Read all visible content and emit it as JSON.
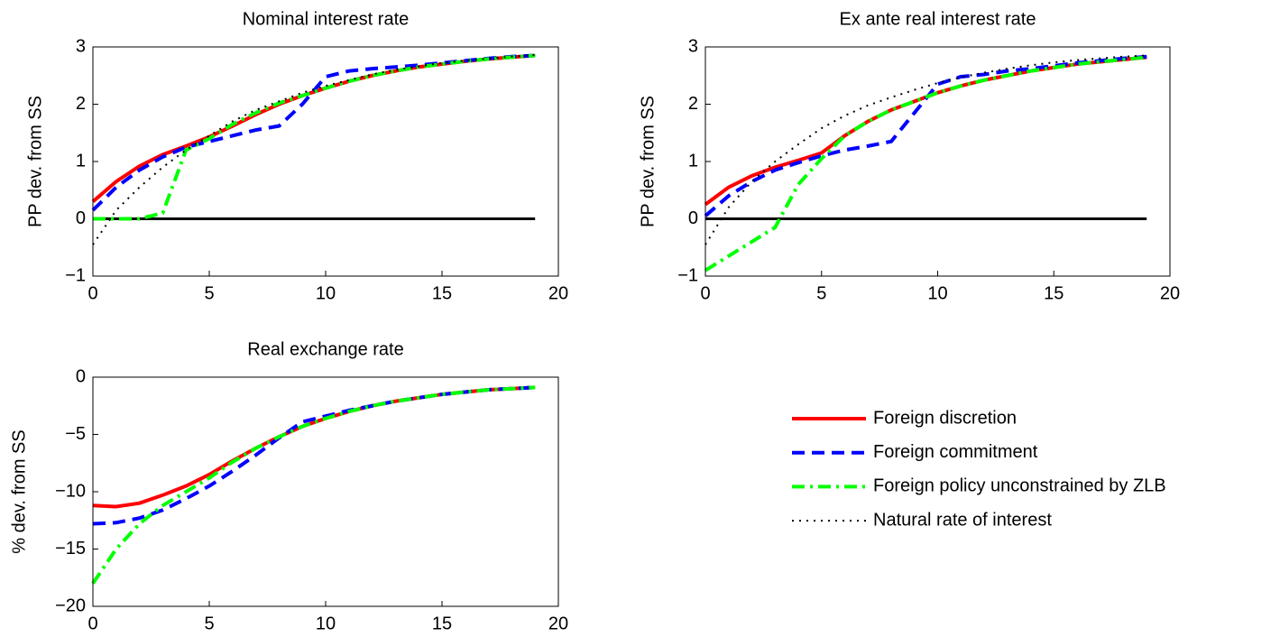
{
  "chart_data": [
    {
      "type": "line",
      "title": "Nominal interest rate",
      "ylabel": "PP dev. from SS",
      "x": [
        0,
        1,
        2,
        3,
        4,
        5,
        6,
        7,
        8,
        9,
        10,
        11,
        12,
        13,
        14,
        15,
        16,
        17,
        18,
        19
      ],
      "xlim": [
        0,
        20
      ],
      "xticks": [
        0,
        5,
        10,
        15,
        20
      ],
      "ylim": [
        -1,
        3
      ],
      "yticks": [
        {
          "value": -1,
          "label": "−1"
        },
        0,
        1,
        2,
        3
      ],
      "hline": 0,
      "series": [
        {
          "name": "Foreign discretion",
          "color": "#ff0000",
          "style": "solid",
          "values": [
            0.3,
            0.65,
            0.92,
            1.12,
            1.27,
            1.43,
            1.62,
            1.82,
            2.0,
            2.15,
            2.28,
            2.4,
            2.5,
            2.58,
            2.65,
            2.7,
            2.75,
            2.79,
            2.82,
            2.85
          ]
        },
        {
          "name": "Foreign commitment",
          "color": "#0000ff",
          "style": "dashed",
          "values": [
            0.15,
            0.55,
            0.85,
            1.08,
            1.25,
            1.35,
            1.45,
            1.55,
            1.62,
            2.0,
            2.48,
            2.58,
            2.62,
            2.65,
            2.68,
            2.72,
            2.76,
            2.8,
            2.83,
            2.85
          ]
        },
        {
          "name": "Foreign policy unconstrained by ZLB",
          "color": "#00ff00",
          "style": "dashdot",
          "values": [
            0,
            0,
            0,
            0.1,
            1.2,
            1.4,
            1.65,
            1.85,
            2.02,
            2.15,
            2.28,
            2.4,
            2.5,
            2.58,
            2.65,
            2.7,
            2.75,
            2.79,
            2.82,
            2.85
          ]
        },
        {
          "name": "Natural rate of interest",
          "color": "#000000",
          "style": "dotted",
          "values": [
            -0.45,
            0.15,
            0.55,
            0.9,
            1.2,
            1.45,
            1.7,
            1.9,
            2.05,
            2.2,
            2.32,
            2.42,
            2.52,
            2.6,
            2.66,
            2.72,
            2.76,
            2.8,
            2.83,
            2.86
          ]
        }
      ]
    },
    {
      "type": "line",
      "title": "Ex ante real interest rate",
      "ylabel": "PP dev. from SS",
      "x": [
        0,
        1,
        2,
        3,
        4,
        5,
        6,
        7,
        8,
        9,
        10,
        11,
        12,
        13,
        14,
        15,
        16,
        17,
        18,
        19
      ],
      "xlim": [
        0,
        20
      ],
      "xticks": [
        0,
        5,
        10,
        15,
        20
      ],
      "ylim": [
        -1,
        3
      ],
      "yticks": [
        {
          "value": -1,
          "label": "−1"
        },
        0,
        1,
        2,
        3
      ],
      "hline": 0,
      "series": [
        {
          "color": "#ff0000",
          "style": "solid",
          "values": [
            0.25,
            0.55,
            0.75,
            0.9,
            1.02,
            1.15,
            1.45,
            1.7,
            1.9,
            2.05,
            2.2,
            2.32,
            2.42,
            2.5,
            2.58,
            2.64,
            2.7,
            2.74,
            2.78,
            2.82
          ]
        },
        {
          "color": "#0000ff",
          "style": "dashed",
          "values": [
            0.05,
            0.4,
            0.65,
            0.85,
            0.98,
            1.1,
            1.2,
            1.27,
            1.35,
            1.85,
            2.35,
            2.48,
            2.52,
            2.58,
            2.62,
            2.67,
            2.72,
            2.76,
            2.8,
            2.83
          ]
        },
        {
          "color": "#00ff00",
          "style": "dashdot",
          "values": [
            -0.9,
            -0.65,
            -0.4,
            -0.15,
            0.6,
            1.05,
            1.45,
            1.7,
            1.9,
            2.05,
            2.2,
            2.32,
            2.42,
            2.5,
            2.58,
            2.64,
            2.7,
            2.74,
            2.78,
            2.82
          ]
        },
        {
          "color": "#000000",
          "style": "dotted",
          "values": [
            -0.45,
            0.2,
            0.65,
            1.0,
            1.3,
            1.58,
            1.8,
            1.98,
            2.12,
            2.25,
            2.37,
            2.47,
            2.55,
            2.62,
            2.68,
            2.73,
            2.77,
            2.8,
            2.83,
            2.85
          ]
        }
      ]
    },
    {
      "type": "line",
      "title": "Real exchange rate",
      "ylabel": "% dev. from SS",
      "x": [
        0,
        1,
        2,
        3,
        4,
        5,
        6,
        7,
        8,
        9,
        10,
        11,
        12,
        13,
        14,
        15,
        16,
        17,
        18,
        19
      ],
      "xlim": [
        0,
        20
      ],
      "xticks": [
        0,
        5,
        10,
        15,
        20
      ],
      "ylim": [
        -20,
        0
      ],
      "yticks": [
        {
          "value": -20,
          "label": "−20"
        },
        {
          "value": -15,
          "label": "−15"
        },
        {
          "value": -10,
          "label": "−10"
        },
        {
          "value": -5,
          "label": "−5"
        },
        0
      ],
      "series": [
        {
          "color": "#ff0000",
          "style": "solid",
          "values": [
            -11.2,
            -11.3,
            -11.0,
            -10.3,
            -9.5,
            -8.5,
            -7.3,
            -6.2,
            -5.2,
            -4.3,
            -3.6,
            -3.0,
            -2.5,
            -2.1,
            -1.8,
            -1.5,
            -1.3,
            -1.1,
            -1.0,
            -0.9
          ]
        },
        {
          "color": "#0000ff",
          "style": "dashed",
          "values": [
            -12.8,
            -12.7,
            -12.3,
            -11.6,
            -10.6,
            -9.5,
            -8.2,
            -6.8,
            -5.3,
            -3.9,
            -3.4,
            -2.9,
            -2.5,
            -2.1,
            -1.8,
            -1.5,
            -1.3,
            -1.1,
            -1.0,
            -0.9
          ]
        },
        {
          "color": "#00ff00",
          "style": "dashdot",
          "values": [
            -18,
            -15,
            -12.8,
            -11.2,
            -10,
            -8.8,
            -7.4,
            -6.2,
            -5.2,
            -4.3,
            -3.6,
            -3.0,
            -2.5,
            -2.1,
            -1.8,
            -1.5,
            -1.3,
            -1.1,
            -1.0,
            -0.9
          ]
        }
      ]
    }
  ]
}
